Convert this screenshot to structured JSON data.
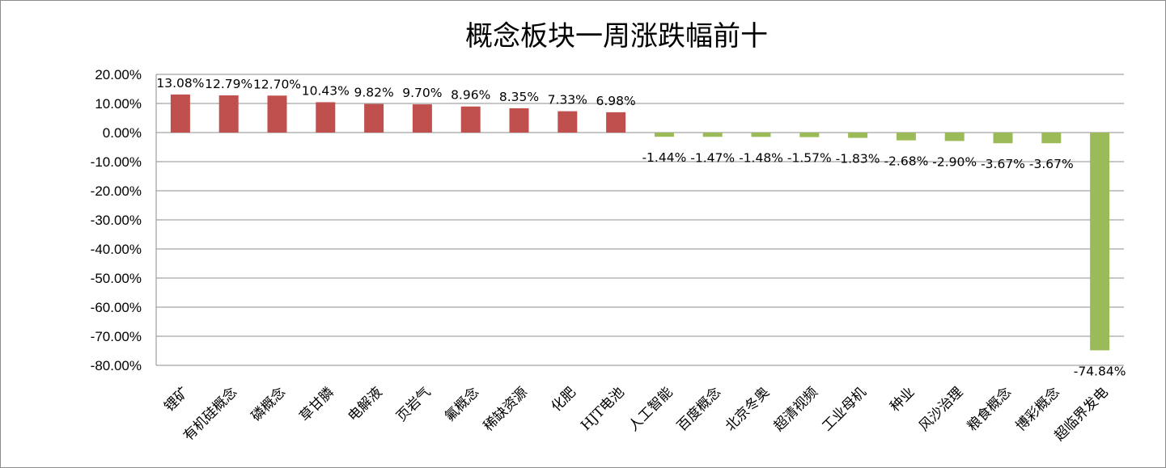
{
  "chart_data": {
    "type": "bar",
    "title": "概念板块一周涨跌幅前十",
    "categories": [
      "锂矿",
      "有机硅概念",
      "磷概念",
      "草甘膦",
      "电解液",
      "页岩气",
      "氟概念",
      "稀缺资源",
      "化肥",
      "HJT电池",
      "人工智能",
      "百度概念",
      "北京冬奥",
      "超清视频",
      "工业母机",
      "种业",
      "风沙治理",
      "粮食概念",
      "博彩概念",
      "超临界发电"
    ],
    "values": [
      13.08,
      12.79,
      12.7,
      10.43,
      9.82,
      9.7,
      8.96,
      8.35,
      7.33,
      6.98,
      -1.44,
      -1.47,
      -1.48,
      -1.57,
      -1.83,
      -2.68,
      -2.9,
      -3.67,
      -3.67,
      -74.84
    ],
    "data_labels": [
      "13.08%",
      "12.79%",
      "12.70%",
      "10.43%",
      "9.82%",
      "9.70%",
      "8.96%",
      "8.35%",
      "7.33%",
      "6.98%",
      "-1.44%",
      "-1.47%",
      "-1.48%",
      "-1.57%",
      "-1.83%",
      "-2.68%",
      "-2.90%",
      "-3.67%",
      "-3.67%",
      "-74.84%"
    ],
    "ylim": [
      -80,
      20
    ],
    "yticks": [
      20,
      10,
      0,
      -10,
      -20,
      -30,
      -40,
      -50,
      -60,
      -70,
      -80
    ],
    "ytick_labels": [
      "20.00%",
      "10.00%",
      "0.00%",
      "-10.00%",
      "-20.00%",
      "-30.00%",
      "-40.00%",
      "-50.00%",
      "-60.00%",
      "-70.00%",
      "-80.00%"
    ],
    "xlabel": "",
    "ylabel": "",
    "grid": true,
    "legend": "none",
    "colors": {
      "positive": "#c0504d",
      "negative": "#9bbb59"
    }
  }
}
